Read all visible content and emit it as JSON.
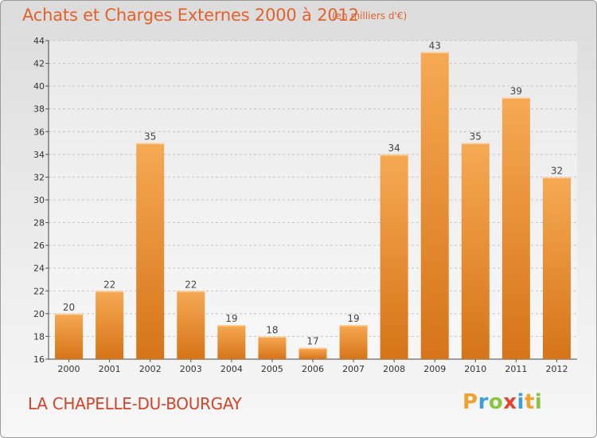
{
  "title": "Achats et Charges Externes 2000 à 2012",
  "subtitle": "(en milliers d'€)",
  "commune": "LA CHAPELLE-DU-BOURGAY",
  "logo": "Proxiti",
  "colors": {
    "title": "#e2622c",
    "commune": "#d2442a",
    "bar_light": "#f6a954",
    "bar_dark": "#d67418"
  },
  "chart_data": {
    "type": "bar",
    "categories": [
      "2000",
      "2001",
      "2002",
      "2003",
      "2004",
      "2005",
      "2006",
      "2007",
      "2008",
      "2009",
      "2010",
      "2011",
      "2012"
    ],
    "values": [
      20,
      22,
      35,
      22,
      19,
      18,
      17,
      19,
      34,
      43,
      35,
      39,
      32
    ],
    "ylim": [
      16,
      44
    ],
    "yticks": [
      16,
      18,
      20,
      22,
      24,
      26,
      28,
      30,
      32,
      34,
      36,
      38,
      40,
      42,
      44
    ],
    "grid": true
  }
}
